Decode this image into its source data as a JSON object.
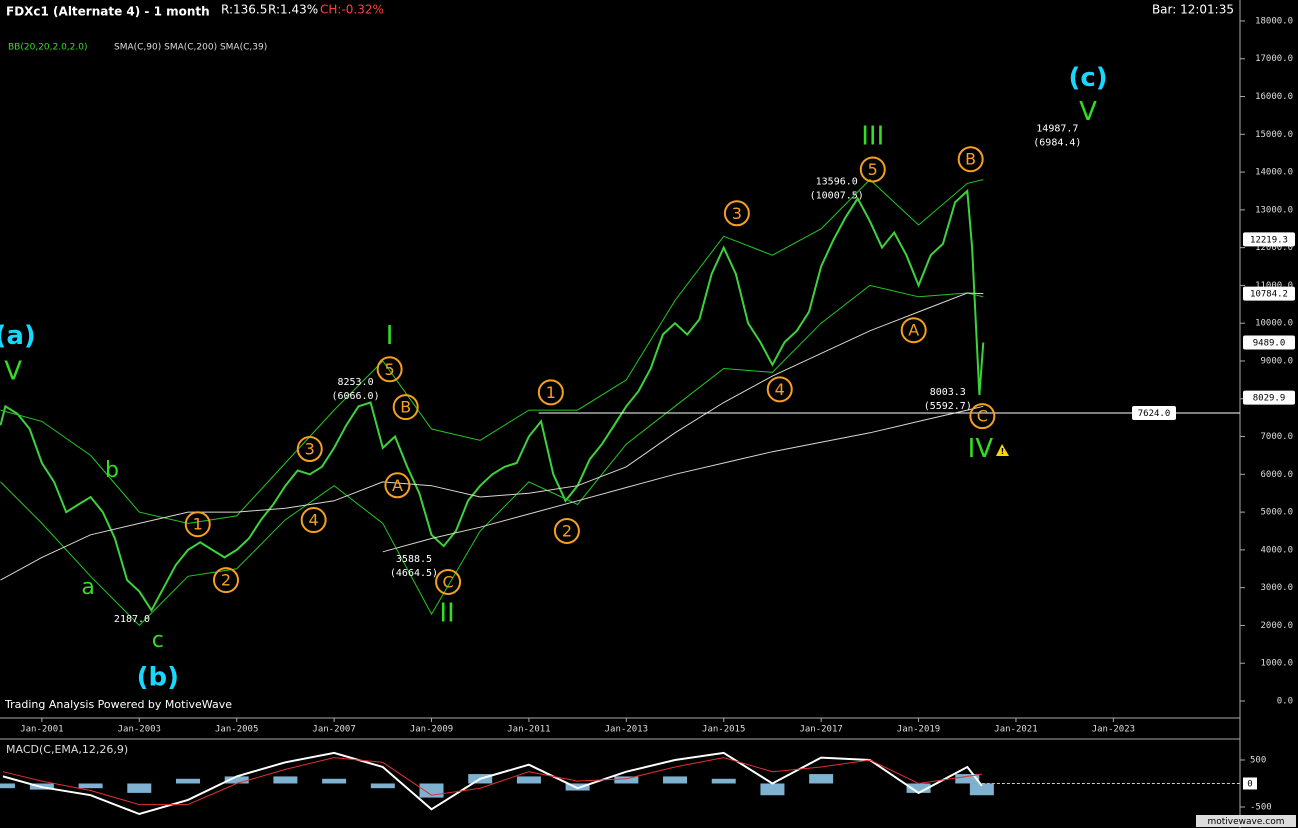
{
  "header": {
    "title": "FDXc1 (Alternate 4) - 1 month",
    "stats": [
      "R:136.5",
      "R:1.43%"
    ],
    "change": "CH:-0.32%",
    "bar_time": "Bar: 12:01:35",
    "indicators": [
      "BB(20,20,2.0,2.0)",
      "SMA(C,90) SMA(C,200) SMA(C,39)"
    ],
    "credit": "Trading Analysis Powered by MotiveWave",
    "site": "motivewave.com"
  },
  "chart_data": [
    {
      "type": "line",
      "xlim": [
        2000.14,
        2025.6
      ],
      "ylim": [
        -450,
        18555
      ],
      "xticks": [
        {
          "value": 2001,
          "label": "Jan-2001"
        },
        {
          "value": 2003,
          "label": "Jan-2003"
        },
        {
          "value": 2005,
          "label": "Jan-2005"
        },
        {
          "value": 2007,
          "label": "Jan-2007"
        },
        {
          "value": 2009,
          "label": "Jan-2009"
        },
        {
          "value": 2011,
          "label": "Jan-2011"
        },
        {
          "value": 2013,
          "label": "Jan-2013"
        },
        {
          "value": 2015,
          "label": "Jan-2015"
        },
        {
          "value": 2017,
          "label": "Jan-2017"
        },
        {
          "value": 2019,
          "label": "Jan-2019"
        },
        {
          "value": 2021,
          "label": "Jan-2021"
        },
        {
          "value": 2023,
          "label": "Jan-2023"
        }
      ],
      "yticks": [
        {
          "value": 0,
          "label": "0.0"
        },
        {
          "value": 1000,
          "label": "1000.0"
        },
        {
          "value": 2000,
          "label": "2000.0"
        },
        {
          "value": 3000,
          "label": "3000.0"
        },
        {
          "value": 4000,
          "label": "4000.0"
        },
        {
          "value": 5000,
          "label": "5000.0"
        },
        {
          "value": 6000,
          "label": "6000.0"
        },
        {
          "value": 7000,
          "label": "7000.0"
        },
        {
          "value": 8000,
          "label": "8000.0"
        },
        {
          "value": 9000,
          "label": "9000.0"
        },
        {
          "value": 10000,
          "label": "10000.0"
        },
        {
          "value": 11000,
          "label": "11000.0"
        },
        {
          "value": 12000,
          "label": "12000.0"
        },
        {
          "value": 13000,
          "label": "13000.0"
        },
        {
          "value": 14000,
          "label": "14000.0"
        },
        {
          "value": 15000,
          "label": "15000.0"
        },
        {
          "value": 16000,
          "label": "16000.0"
        },
        {
          "value": 17000,
          "label": "17000.0"
        },
        {
          "value": 18000,
          "label": "18000.0"
        }
      ],
      "series": [
        {
          "kind": "line",
          "color": "#3cd23c",
          "width": 2,
          "x": [
            2000.15,
            2000.25,
            2000.5,
            2000.75,
            2001,
            2001.25,
            2001.5,
            2001.75,
            2002,
            2002.25,
            2002.5,
            2002.75,
            2003,
            2003.25,
            2003.5,
            2003.75,
            2004,
            2004.25,
            2004.5,
            2004.75,
            2005,
            2005.25,
            2005.5,
            2005.75,
            2006,
            2006.25,
            2006.5,
            2006.75,
            2007,
            2007.25,
            2007.5,
            2007.75,
            2008,
            2008.25,
            2008.5,
            2008.75,
            2009,
            2009.25,
            2009.5,
            2009.75,
            2010,
            2010.25,
            2010.5,
            2010.75,
            2011,
            2011.25,
            2011.5,
            2011.75,
            2012,
            2012.25,
            2012.5,
            2012.75,
            2013,
            2013.25,
            2013.5,
            2013.75,
            2014,
            2014.25,
            2014.5,
            2014.75,
            2015,
            2015.25,
            2015.5,
            2015.75,
            2016,
            2016.25,
            2016.5,
            2016.75,
            2017,
            2017.25,
            2017.5,
            2017.75,
            2018,
            2018.25,
            2018.5,
            2018.75,
            2019,
            2019.25,
            2019.5,
            2019.75,
            2020,
            2020.1,
            2020.25,
            2020.33
          ],
          "values": [
            7300,
            7800,
            7600,
            7200,
            6300,
            5800,
            5000,
            5200,
            5400,
            5000,
            4300,
            3200,
            2900,
            2400,
            3000,
            3600,
            4000,
            4200,
            4000,
            3800,
            4000,
            4300,
            4800,
            5200,
            5700,
            6100,
            6000,
            6200,
            6700,
            7300,
            7800,
            7900,
            6700,
            7000,
            6200,
            5500,
            4400,
            4100,
            4500,
            5300,
            5700,
            6000,
            6200,
            6300,
            7000,
            7400,
            6000,
            5300,
            5700,
            6400,
            6800,
            7300,
            7800,
            8200,
            8800,
            9700,
            10000,
            9700,
            10100,
            11300,
            12000,
            11300,
            10000,
            9500,
            8900,
            9500,
            9800,
            10300,
            11500,
            12200,
            12800,
            13300,
            12700,
            12000,
            12400,
            11800,
            11000,
            11800,
            12100,
            13200,
            13500,
            12000,
            8100,
            9489
          ]
        },
        {
          "kind": "line",
          "color": "#22c822",
          "width": 1,
          "x": [
            2000.15,
            2001,
            2002,
            2003,
            2004,
            2005,
            2006,
            2007,
            2008,
            2009,
            2010,
            2011,
            2012,
            2013,
            2014,
            2015,
            2016,
            2017,
            2018,
            2019,
            2020,
            2020.33
          ],
          "values": [
            7700,
            7400,
            6500,
            5000,
            4700,
            4900,
            6300,
            7700,
            9000,
            7200,
            6900,
            7700,
            7700,
            8500,
            10600,
            12300,
            11800,
            12500,
            13800,
            12600,
            13700,
            13800
          ]
        },
        {
          "kind": "line",
          "color": "#22c822",
          "width": 1,
          "x": [
            2000.15,
            2001,
            2002,
            2003,
            2004,
            2005,
            2006,
            2007,
            2008,
            2009,
            2010,
            2011,
            2012,
            2013,
            2014,
            2015,
            2016,
            2017,
            2018,
            2019,
            2020,
            2020.33
          ],
          "values": [
            5800,
            4700,
            3300,
            2000,
            3300,
            3500,
            4800,
            5700,
            4700,
            2300,
            4500,
            5800,
            5200,
            6800,
            7800,
            8800,
            8700,
            10000,
            11000,
            10700,
            10800,
            10700
          ]
        },
        {
          "kind": "line",
          "color": "#d8d8d0",
          "width": 1,
          "x": [
            2000.15,
            2001,
            2002,
            2003,
            2004,
            2005,
            2006,
            2007,
            2008,
            2009,
            2010,
            2011,
            2012,
            2013,
            2014,
            2015,
            2016,
            2017,
            2018,
            2019,
            2020,
            2020.33
          ],
          "values": [
            3200,
            3800,
            4400,
            4700,
            5000,
            5000,
            5100,
            5300,
            5800,
            5700,
            5400,
            5500,
            5700,
            6200,
            7100,
            7900,
            8600,
            9200,
            9800,
            10300,
            10800,
            10784
          ]
        },
        {
          "kind": "line",
          "color": "#d8d8d0",
          "width": 1,
          "x": [
            2000.15,
            2001,
            2002,
            2003,
            2004,
            2005,
            2006,
            2007,
            2008,
            2009,
            2010,
            2011,
            2012,
            2013,
            2014,
            2015,
            2016,
            2017,
            2018,
            2019,
            2020,
            2020.33
          ],
          "values": [
            null,
            null,
            null,
            null,
            null,
            null,
            null,
            null,
            3950,
            4300,
            4600,
            4950,
            5300,
            5650,
            6000,
            6300,
            6600,
            6850,
            7100,
            7400,
            7700,
            7800
          ]
        }
      ],
      "hline": {
        "value": 7624.0,
        "label": "7624.0",
        "start": 2011.2
      },
      "price_tags": [
        {
          "value": 12219.3,
          "label": "12219.3"
        },
        {
          "value": 10784.2,
          "label": "10784.2"
        },
        {
          "value": 9489.0,
          "label": "9489.0"
        },
        {
          "value": 8029.9,
          "label": "8029.9"
        }
      ],
      "annotations": [
        {
          "text": "(a)",
          "x": 2000.45,
          "y": 9680,
          "role": "cycle"
        },
        {
          "text": "V",
          "x": 2000.41,
          "y": 8730,
          "role": "primary"
        },
        {
          "text": "b",
          "x": 2002.44,
          "y": 6110,
          "role": "minor"
        },
        {
          "text": "a",
          "x": 2001.95,
          "y": 3015,
          "role": "minor"
        },
        {
          "text": "2187.0",
          "x": 2002.85,
          "y": 2196,
          "role": "price"
        },
        {
          "text": "c",
          "x": 2003.38,
          "y": 1614,
          "role": "minor"
        },
        {
          "text": "(b)",
          "x": 2003.38,
          "y": 635,
          "role": "cycle"
        },
        {
          "text": "1",
          "x": 2004.2,
          "y": 4680,
          "role": "circled"
        },
        {
          "text": "2",
          "x": 2004.78,
          "y": 3200,
          "role": "circled"
        },
        {
          "text": "3",
          "x": 2006.5,
          "y": 6670,
          "role": "circled"
        },
        {
          "text": "4",
          "x": 2006.58,
          "y": 4790,
          "role": "circled"
        },
        {
          "text": "8253.0",
          "x": 2007.44,
          "y": 8470,
          "role": "price"
        },
        {
          "text": "(6066.0)",
          "x": 2007.44,
          "y": 8095,
          "role": "price"
        },
        {
          "text": "5",
          "x": 2008.14,
          "y": 8780,
          "role": "circled"
        },
        {
          "text": "I",
          "x": 2008.14,
          "y": 9680,
          "role": "primary"
        },
        {
          "text": "B",
          "x": 2008.47,
          "y": 7780,
          "role": "circled"
        },
        {
          "text": "A",
          "x": 2008.3,
          "y": 5710,
          "role": "circled"
        },
        {
          "text": "3588.5",
          "x": 2008.64,
          "y": 3780,
          "role": "price"
        },
        {
          "text": "(4664.5)",
          "x": 2008.64,
          "y": 3410,
          "role": "price"
        },
        {
          "text": "C",
          "x": 2009.34,
          "y": 3150,
          "role": "circled"
        },
        {
          "text": "II",
          "x": 2009.32,
          "y": 2330,
          "role": "primary"
        },
        {
          "text": "1",
          "x": 2011.45,
          "y": 8170,
          "role": "circled"
        },
        {
          "text": "2",
          "x": 2011.78,
          "y": 4500,
          "role": "circled"
        },
        {
          "text": "3",
          "x": 2015.27,
          "y": 12910,
          "role": "circled"
        },
        {
          "text": "4",
          "x": 2016.15,
          "y": 8250,
          "role": "circled"
        },
        {
          "text": "13596.0",
          "x": 2017.32,
          "y": 13780,
          "role": "price"
        },
        {
          "text": "(10007.5)",
          "x": 2017.32,
          "y": 13410,
          "role": "price"
        },
        {
          "text": "5",
          "x": 2018.06,
          "y": 14070,
          "role": "circled"
        },
        {
          "text": "III",
          "x": 2018.06,
          "y": 14950,
          "role": "primary"
        },
        {
          "text": "A",
          "x": 2018.9,
          "y": 9815,
          "role": "circled"
        },
        {
          "text": "B",
          "x": 2020.07,
          "y": 14340,
          "role": "circled"
        },
        {
          "text": "8003.3",
          "x": 2019.6,
          "y": 8200,
          "role": "price"
        },
        {
          "text": "(5592.7)",
          "x": 2019.6,
          "y": 7830,
          "role": "price"
        },
        {
          "text": "C",
          "x": 2020.31,
          "y": 7540,
          "role": "circled"
        },
        {
          "text": "IV",
          "x": 2020.27,
          "y": 6690,
          "role": "primary"
        },
        {
          "text": "14987.7",
          "x": 2021.85,
          "y": 15185,
          "role": "price"
        },
        {
          "text": "(6984.4)",
          "x": 2021.85,
          "y": 14815,
          "role": "price"
        },
        {
          "text": "(c)",
          "x": 2022.48,
          "y": 16510,
          "role": "cycle"
        },
        {
          "text": "V",
          "x": 2022.48,
          "y": 15610,
          "role": "primary"
        }
      ]
    },
    {
      "type": "line",
      "title": "MACD(C,EMA,12,26,9)",
      "ylim": [
        -947,
        925
      ],
      "yticks": [
        500,
        -500
      ],
      "zero_tag": {
        "value": 0,
        "label": "0"
      },
      "series": [
        {
          "kind": "histogram",
          "color": "#7fb2d0",
          "x": [
            2000.2,
            2001,
            2002,
            2003,
            2004,
            2005,
            2006,
            2007,
            2008,
            2009,
            2010,
            2011,
            2012,
            2013,
            2014,
            2015,
            2016,
            2017,
            2018,
            2019,
            2020,
            2020.3
          ],
          "values": [
            -100,
            -130,
            -100,
            -200,
            100,
            150,
            150,
            100,
            -100,
            -300,
            200,
            150,
            -150,
            150,
            150,
            100,
            -250,
            200,
            0,
            -200,
            200,
            -250
          ]
        },
        {
          "kind": "line",
          "color": "#ffffff",
          "width": 2,
          "x": [
            2000.2,
            2001,
            2002,
            2003,
            2004,
            2005,
            2006,
            2007,
            2008,
            2009,
            2010,
            2011,
            2012,
            2013,
            2014,
            2015,
            2016,
            2017,
            2018,
            2019,
            2020,
            2020.3
          ],
          "values": [
            150,
            -80,
            -250,
            -650,
            -350,
            150,
            450,
            650,
            350,
            -550,
            100,
            400,
            -100,
            250,
            500,
            650,
            0,
            550,
            500,
            -200,
            350,
            -50
          ]
        },
        {
          "kind": "line",
          "color": "#e03030",
          "width": 1,
          "x": [
            2000.2,
            2001,
            2002,
            2003,
            2004,
            2005,
            2006,
            2007,
            2008,
            2009,
            2010,
            2011,
            2012,
            2013,
            2014,
            2015,
            2016,
            2017,
            2018,
            2019,
            2020,
            2020.3
          ],
          "values": [
            250,
            50,
            -150,
            -450,
            -450,
            0,
            300,
            550,
            450,
            -250,
            -100,
            250,
            50,
            100,
            350,
            550,
            250,
            350,
            500,
            0,
            150,
            200
          ]
        }
      ]
    }
  ]
}
